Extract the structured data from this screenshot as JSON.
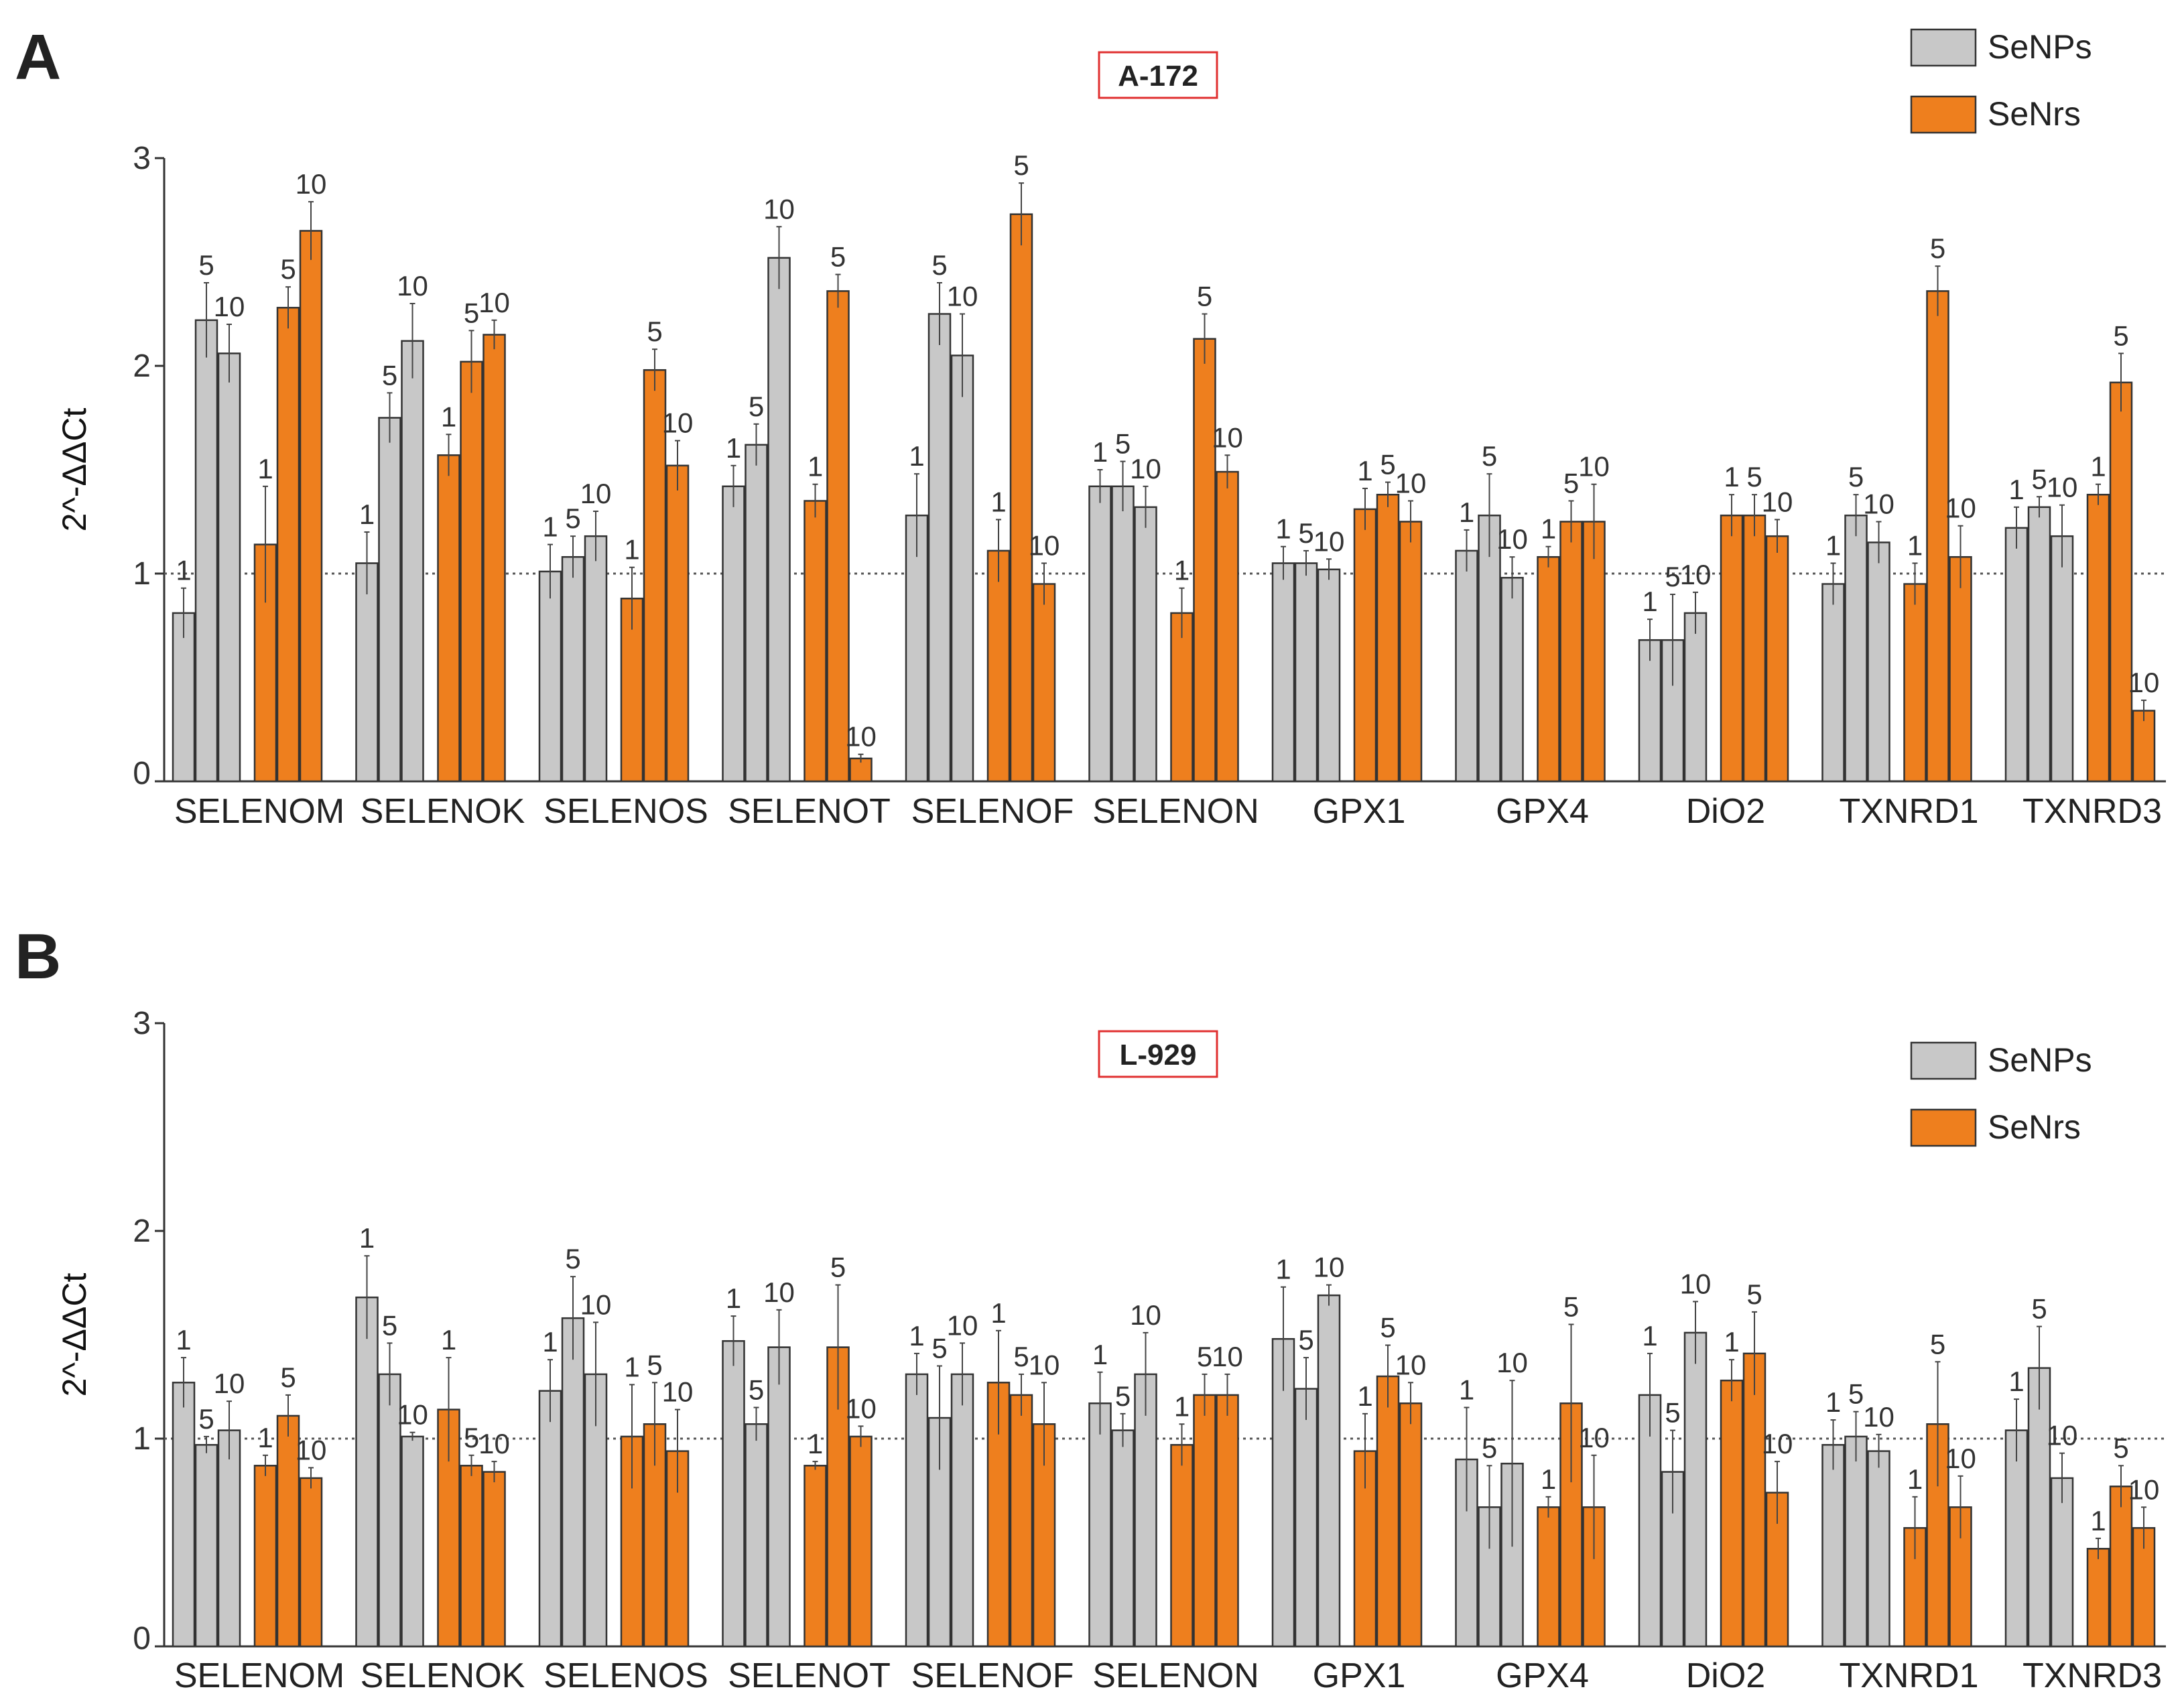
{
  "colors": {
    "senps": "#c8c8c8",
    "senrs": "#ee7f1e",
    "stroke": "#333333",
    "title_box": "#e03030"
  },
  "legend": [
    {
      "label": "SeNPs",
      "color": "#c8c8c8"
    },
    {
      "label": "SeNrs",
      "color": "#ee7f1e"
    }
  ],
  "chart_data": [
    {
      "panel": "A",
      "type": "bar",
      "title": "A-172",
      "ylabel": "2^-ΔΔCt",
      "ylim": [
        0,
        3
      ],
      "yticks": [
        "0",
        "1",
        "2",
        "3"
      ],
      "reference_line": 1,
      "legend_position": "top-right",
      "dose_labels": [
        "1",
        "5",
        "10"
      ],
      "categories": [
        "SELENOM",
        "SELENOK",
        "SELENOS",
        "SELENOT",
        "SELENOF",
        "SELENON",
        "GPX1",
        "GPX4",
        "DiO2",
        "TXNRD1",
        "TXNRD3"
      ],
      "series": [
        {
          "name": "SeNPs",
          "values": [
            [
              0.81,
              2.22,
              2.06
            ],
            [
              1.05,
              1.75,
              2.12
            ],
            [
              1.01,
              1.08,
              1.18
            ],
            [
              1.42,
              1.62,
              2.52
            ],
            [
              1.28,
              2.25,
              2.05
            ],
            [
              1.42,
              1.42,
              1.32
            ],
            [
              1.05,
              1.05,
              1.02
            ],
            [
              1.11,
              1.28,
              0.98
            ],
            [
              0.68,
              0.68,
              0.81
            ],
            [
              0.95,
              1.28,
              1.15
            ],
            [
              1.22,
              1.32,
              1.18
            ]
          ],
          "errors": [
            [
              0.12,
              0.18,
              0.14
            ],
            [
              0.15,
              0.12,
              0.18
            ],
            [
              0.13,
              0.1,
              0.12
            ],
            [
              0.1,
              0.1,
              0.15
            ],
            [
              0.2,
              0.15,
              0.2
            ],
            [
              0.08,
              0.12,
              0.1
            ],
            [
              0.08,
              0.06,
              0.05
            ],
            [
              0.1,
              0.2,
              0.1
            ],
            [
              0.1,
              0.22,
              0.1
            ],
            [
              0.1,
              0.1,
              0.1
            ],
            [
              0.1,
              0.05,
              0.15
            ]
          ]
        },
        {
          "name": "SeNrs",
          "values": [
            [
              1.14,
              2.28,
              2.65
            ],
            [
              1.57,
              2.02,
              2.15
            ],
            [
              0.88,
              1.98,
              1.52
            ],
            [
              1.35,
              2.36,
              0.11
            ],
            [
              1.11,
              2.73,
              0.95
            ],
            [
              0.81,
              2.13,
              1.49
            ],
            [
              1.31,
              1.38,
              1.25
            ],
            [
              1.08,
              1.25,
              1.25
            ],
            [
              1.28,
              1.28,
              1.18
            ],
            [
              0.95,
              2.36,
              1.08
            ],
            [
              1.38,
              1.92,
              0.34
            ]
          ],
          "errors": [
            [
              0.28,
              0.1,
              0.14
            ],
            [
              0.1,
              0.15,
              0.07
            ],
            [
              0.15,
              0.1,
              0.12
            ],
            [
              0.08,
              0.08,
              0.02
            ],
            [
              0.15,
              0.15,
              0.1
            ],
            [
              0.12,
              0.12,
              0.08
            ],
            [
              0.1,
              0.06,
              0.1
            ],
            [
              0.05,
              0.1,
              0.18
            ],
            [
              0.1,
              0.1,
              0.08
            ],
            [
              0.1,
              0.12,
              0.15
            ],
            [
              0.05,
              0.14,
              0.05
            ]
          ]
        }
      ]
    },
    {
      "panel": "B",
      "type": "bar",
      "title": "L-929",
      "ylabel": "2^-ΔΔCt",
      "ylim": [
        0,
        3
      ],
      "yticks": [
        "0",
        "1",
        "2",
        "3"
      ],
      "reference_line": 1,
      "legend_position": "top-right",
      "dose_labels": [
        "1",
        "5",
        "10"
      ],
      "categories": [
        "SELENOM",
        "SELENOK",
        "SELENOS",
        "SELENOT",
        "SELENOF",
        "SELENON",
        "GPX1",
        "GPX4",
        "DiO2",
        "TXNRD1",
        "TXNRD3"
      ],
      "series": [
        {
          "name": "SeNPs",
          "values": [
            [
              1.27,
              0.97,
              1.04
            ],
            [
              1.68,
              1.31,
              1.01
            ],
            [
              1.23,
              1.58,
              1.31
            ],
            [
              1.47,
              1.07,
              1.44
            ],
            [
              1.31,
              1.1,
              1.31
            ],
            [
              1.17,
              1.04,
              1.31
            ],
            [
              1.48,
              1.24,
              1.69
            ],
            [
              0.9,
              0.67,
              0.88
            ],
            [
              1.21,
              0.84,
              1.51
            ],
            [
              0.97,
              1.01,
              0.94
            ],
            [
              1.04,
              1.34,
              0.81
            ]
          ],
          "errors": [
            [
              0.12,
              0.04,
              0.14
            ],
            [
              0.2,
              0.15,
              0.02
            ],
            [
              0.15,
              0.2,
              0.25
            ],
            [
              0.12,
              0.08,
              0.18
            ],
            [
              0.1,
              0.25,
              0.15
            ],
            [
              0.15,
              0.08,
              0.2
            ],
            [
              0.25,
              0.15,
              0.05
            ],
            [
              0.25,
              0.2,
              0.4
            ],
            [
              0.2,
              0.2,
              0.15
            ],
            [
              0.12,
              0.12,
              0.08
            ],
            [
              0.15,
              0.2,
              0.12
            ]
          ]
        },
        {
          "name": "SeNrs",
          "values": [
            [
              0.87,
              1.11,
              0.81
            ],
            [
              1.14,
              0.87,
              0.84
            ],
            [
              1.01,
              1.07,
              0.94
            ],
            [
              0.87,
              1.44,
              1.01
            ],
            [
              1.27,
              1.21,
              1.07
            ],
            [
              0.97,
              1.21,
              1.21
            ],
            [
              0.94,
              1.3,
              1.17
            ],
            [
              0.67,
              1.17,
              0.67
            ],
            [
              1.28,
              1.41,
              0.74
            ],
            [
              0.57,
              1.07,
              0.67
            ],
            [
              0.47,
              0.77,
              0.57
            ]
          ],
          "errors": [
            [
              0.05,
              0.1,
              0.05
            ],
            [
              0.25,
              0.05,
              0.05
            ],
            [
              0.25,
              0.2,
              0.2
            ],
            [
              0.02,
              0.3,
              0.05
            ],
            [
              0.25,
              0.1,
              0.2
            ],
            [
              0.1,
              0.1,
              0.1
            ],
            [
              0.18,
              0.15,
              0.1
            ],
            [
              0.05,
              0.38,
              0.25
            ],
            [
              0.1,
              0.2,
              0.15
            ],
            [
              0.15,
              0.3,
              0.15
            ],
            [
              0.05,
              0.1,
              0.1
            ]
          ]
        }
      ]
    }
  ]
}
